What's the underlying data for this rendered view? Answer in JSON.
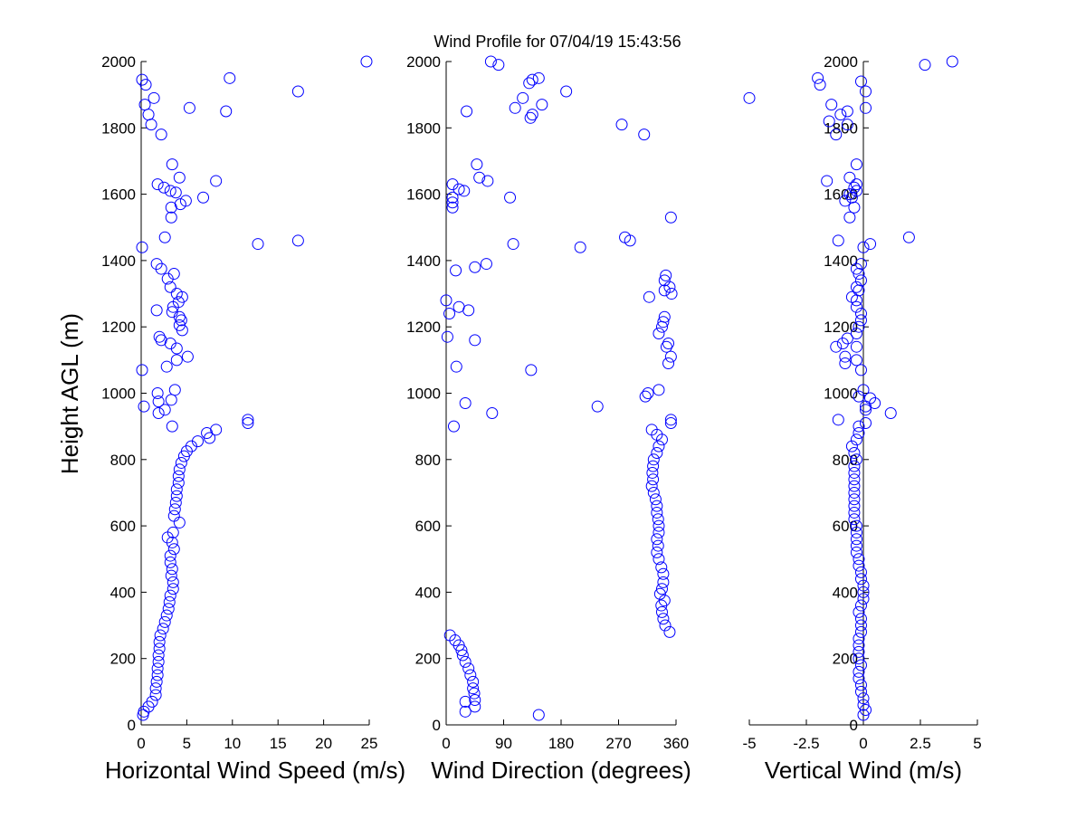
{
  "title": "Wind Profile for  07/04/19 15:43:56",
  "ylabel": "Height AGL (m)",
  "marker_color": "#0000ff",
  "chart_data": [
    {
      "type": "scatter",
      "xlabel": "Horizontal Wind Speed (m/s)",
      "xlim": [
        0,
        25
      ],
      "ylim": [
        0,
        2000
      ],
      "xticks": [
        0,
        5,
        10,
        15,
        20,
        25
      ],
      "xtick_labels": [
        "0",
        "5",
        "10",
        "15",
        "20",
        "25"
      ],
      "yticks": [
        0,
        200,
        400,
        600,
        800,
        1000,
        1200,
        1400,
        1600,
        1800,
        2000
      ],
      "ytick_labels": [
        "0",
        "200",
        "400",
        "600",
        "800",
        "1000",
        "1200",
        "1400",
        "1600",
        "1800",
        "2000"
      ],
      "marker": "open-circle",
      "points": [
        [
          0.2,
          30
        ],
        [
          0.3,
          40
        ],
        [
          0.8,
          55
        ],
        [
          1.2,
          70
        ],
        [
          1.6,
          90
        ],
        [
          1.6,
          110
        ],
        [
          1.7,
          130
        ],
        [
          1.8,
          150
        ],
        [
          1.8,
          170
        ],
        [
          1.9,
          190
        ],
        [
          1.9,
          210
        ],
        [
          2,
          230
        ],
        [
          2,
          250
        ],
        [
          2.1,
          270
        ],
        [
          2.4,
          290
        ],
        [
          2.6,
          310
        ],
        [
          2.8,
          330
        ],
        [
          3,
          350
        ],
        [
          3.1,
          370
        ],
        [
          3.2,
          390
        ],
        [
          3.5,
          410
        ],
        [
          3.5,
          430
        ],
        [
          3.3,
          450
        ],
        [
          3.4,
          470
        ],
        [
          3.2,
          490
        ],
        [
          3.2,
          510
        ],
        [
          3.6,
          530
        ],
        [
          3.4,
          550
        ],
        [
          2.9,
          565
        ],
        [
          3.5,
          580
        ],
        [
          4.2,
          610
        ],
        [
          3.6,
          630
        ],
        [
          3.7,
          650
        ],
        [
          3.8,
          670
        ],
        [
          3.9,
          690
        ],
        [
          3.9,
          710
        ],
        [
          4.1,
          730
        ],
        [
          4.1,
          750
        ],
        [
          4.2,
          770
        ],
        [
          4.4,
          790
        ],
        [
          4.7,
          810
        ],
        [
          5,
          825
        ],
        [
          5.5,
          840
        ],
        [
          6.2,
          855
        ],
        [
          7.5,
          865
        ],
        [
          7.2,
          880
        ],
        [
          8.2,
          890
        ],
        [
          11.7,
          910
        ],
        [
          11.7,
          920
        ],
        [
          3.4,
          900
        ],
        [
          1.9,
          940
        ],
        [
          2.6,
          950
        ],
        [
          0.3,
          960
        ],
        [
          1.9,
          975
        ],
        [
          3.3,
          980
        ],
        [
          1.8,
          1000
        ],
        [
          3.7,
          1010
        ],
        [
          0.1,
          1070
        ],
        [
          2.8,
          1080
        ],
        [
          3.9,
          1100
        ],
        [
          5.1,
          1110
        ],
        [
          3.9,
          1135
        ],
        [
          3.2,
          1150
        ],
        [
          2.2,
          1160
        ],
        [
          2,
          1170
        ],
        [
          4.5,
          1190
        ],
        [
          4.2,
          1205
        ],
        [
          4.4,
          1220
        ],
        [
          4.2,
          1230
        ],
        [
          3.4,
          1245
        ],
        [
          1.7,
          1250
        ],
        [
          3.5,
          1260
        ],
        [
          4.1,
          1275
        ],
        [
          4.5,
          1290
        ],
        [
          3.9,
          1300
        ],
        [
          3.2,
          1320
        ],
        [
          2.9,
          1345
        ],
        [
          3.6,
          1360
        ],
        [
          2.2,
          1375
        ],
        [
          1.7,
          1390
        ],
        [
          12.8,
          1450
        ],
        [
          17.2,
          1460
        ],
        [
          0.1,
          1440
        ],
        [
          2.6,
          1470
        ],
        [
          3.3,
          1530
        ],
        [
          3.3,
          1560
        ],
        [
          4.3,
          1570
        ],
        [
          4.9,
          1580
        ],
        [
          6.8,
          1590
        ],
        [
          3.8,
          1605
        ],
        [
          3.2,
          1610
        ],
        [
          2.5,
          1620
        ],
        [
          1.8,
          1630
        ],
        [
          8.2,
          1640
        ],
        [
          4.2,
          1650
        ],
        [
          3.4,
          1690
        ],
        [
          2.2,
          1780
        ],
        [
          1.1,
          1810
        ],
        [
          0.8,
          1840
        ],
        [
          5.3,
          1860
        ],
        [
          9.3,
          1850
        ],
        [
          0.4,
          1870
        ],
        [
          1.4,
          1890
        ],
        [
          17.2,
          1910
        ],
        [
          0.5,
          1930
        ],
        [
          0.1,
          1945
        ],
        [
          9.7,
          1950
        ],
        [
          24.7,
          2000
        ]
      ]
    },
    {
      "type": "scatter",
      "xlabel": "Wind Direction (degrees)",
      "xlim": [
        0,
        360
      ],
      "ylim": [
        0,
        2000
      ],
      "xticks": [
        0,
        90,
        180,
        270,
        360
      ],
      "xtick_labels": [
        "0",
        "90",
        "180",
        "270",
        "360"
      ],
      "yticks": [
        0,
        200,
        400,
        600,
        800,
        1000,
        1200,
        1400,
        1600,
        1800,
        2000
      ],
      "ytick_labels": [
        "0",
        "200",
        "400",
        "600",
        "800",
        "1000",
        "1200",
        "1400",
        "1600",
        "1800",
        "2000"
      ],
      "marker": "open-circle",
      "points": [
        [
          145,
          30
        ],
        [
          30,
          40
        ],
        [
          45,
          55
        ],
        [
          45,
          75
        ],
        [
          30,
          70
        ],
        [
          44,
          95
        ],
        [
          42,
          110
        ],
        [
          42,
          130
        ],
        [
          38,
          150
        ],
        [
          35,
          170
        ],
        [
          30,
          190
        ],
        [
          26,
          210
        ],
        [
          24,
          225
        ],
        [
          20,
          240
        ],
        [
          14,
          255
        ],
        [
          6,
          270
        ],
        [
          350,
          280
        ],
        [
          343,
          300
        ],
        [
          340,
          320
        ],
        [
          338,
          340
        ],
        [
          337,
          360
        ],
        [
          342,
          375
        ],
        [
          335,
          395
        ],
        [
          338,
          410
        ],
        [
          340,
          430
        ],
        [
          340,
          455
        ],
        [
          337,
          475
        ],
        [
          333,
          500
        ],
        [
          330,
          520
        ],
        [
          332,
          540
        ],
        [
          330,
          560
        ],
        [
          333,
          580
        ],
        [
          333,
          600
        ],
        [
          332,
          620
        ],
        [
          330,
          640
        ],
        [
          330,
          660
        ],
        [
          328,
          680
        ],
        [
          325,
          700
        ],
        [
          322,
          720
        ],
        [
          324,
          740
        ],
        [
          323,
          760
        ],
        [
          324,
          780
        ],
        [
          325,
          800
        ],
        [
          330,
          820
        ],
        [
          333,
          840
        ],
        [
          338,
          860
        ],
        [
          330,
          875
        ],
        [
          322,
          890
        ],
        [
          352,
          910
        ],
        [
          352,
          920
        ],
        [
          12,
          900
        ],
        [
          72,
          940
        ],
        [
          237,
          960
        ],
        [
          30,
          970
        ],
        [
          312,
          990
        ],
        [
          316,
          1000
        ],
        [
          333,
          1010
        ],
        [
          133,
          1070
        ],
        [
          16,
          1080
        ],
        [
          348,
          1090
        ],
        [
          352,
          1110
        ],
        [
          345,
          1140
        ],
        [
          348,
          1150
        ],
        [
          45,
          1160
        ],
        [
          2,
          1170
        ],
        [
          333,
          1180
        ],
        [
          338,
          1200
        ],
        [
          340,
          1215
        ],
        [
          342,
          1230
        ],
        [
          5,
          1240
        ],
        [
          35,
          1250
        ],
        [
          20,
          1260
        ],
        [
          0,
          1280
        ],
        [
          318,
          1290
        ],
        [
          353,
          1300
        ],
        [
          342,
          1310
        ],
        [
          350,
          1320
        ],
        [
          342,
          1340
        ],
        [
          344,
          1355
        ],
        [
          15,
          1370
        ],
        [
          45,
          1380
        ],
        [
          63,
          1390
        ],
        [
          105,
          1450
        ],
        [
          210,
          1440
        ],
        [
          280,
          1470
        ],
        [
          288,
          1460
        ],
        [
          352,
          1530
        ],
        [
          10,
          1560
        ],
        [
          10,
          1575
        ],
        [
          10,
          1590
        ],
        [
          100,
          1590
        ],
        [
          28,
          1610
        ],
        [
          20,
          1615
        ],
        [
          10,
          1630
        ],
        [
          65,
          1640
        ],
        [
          52,
          1650
        ],
        [
          48,
          1690
        ],
        [
          275,
          1810
        ],
        [
          310,
          1780
        ],
        [
          32,
          1850
        ],
        [
          108,
          1860
        ],
        [
          132,
          1830
        ],
        [
          135,
          1840
        ],
        [
          150,
          1870
        ],
        [
          120,
          1890
        ],
        [
          188,
          1910
        ],
        [
          130,
          1935
        ],
        [
          135,
          1945
        ],
        [
          145,
          1950
        ],
        [
          70,
          2000
        ],
        [
          82,
          1990
        ]
      ]
    },
    {
      "type": "scatter",
      "xlabel": "Vertical Wind (m/s)",
      "xlim": [
        -5,
        5
      ],
      "ylim": [
        0,
        2000
      ],
      "xticks": [
        -5,
        -2.5,
        0,
        2.5,
        5
      ],
      "xtick_labels": [
        "-5",
        "-2.5",
        "0",
        "2.5",
        "5"
      ],
      "yticks": [
        0,
        200,
        400,
        600,
        800,
        1000,
        1200,
        1400,
        1600,
        1800,
        2000
      ],
      "ytick_labels": [
        "0",
        "200",
        "400",
        "600",
        "800",
        "1000",
        "1200",
        "1400",
        "1600",
        "1800",
        "2000"
      ],
      "marker": "open-circle",
      "points": [
        [
          0,
          30
        ],
        [
          0.1,
          45
        ],
        [
          0,
          60
        ],
        [
          0,
          80
        ],
        [
          -0.1,
          100
        ],
        [
          -0.1,
          120
        ],
        [
          -0.2,
          140
        ],
        [
          -0.2,
          160
        ],
        [
          -0.1,
          180
        ],
        [
          -0.2,
          200
        ],
        [
          -0.2,
          220
        ],
        [
          -0.2,
          240
        ],
        [
          -0.2,
          260
        ],
        [
          -0.1,
          280
        ],
        [
          -0.1,
          300
        ],
        [
          -0.1,
          320
        ],
        [
          -0.2,
          340
        ],
        [
          -0.1,
          360
        ],
        [
          0,
          380
        ],
        [
          0,
          400
        ],
        [
          0,
          420
        ],
        [
          -0.1,
          440
        ],
        [
          -0.1,
          460
        ],
        [
          -0.2,
          480
        ],
        [
          -0.2,
          500
        ],
        [
          -0.3,
          520
        ],
        [
          -0.3,
          540
        ],
        [
          -0.3,
          560
        ],
        [
          -0.3,
          580
        ],
        [
          -0.3,
          600
        ],
        [
          -0.4,
          620
        ],
        [
          -0.4,
          640
        ],
        [
          -0.4,
          660
        ],
        [
          -0.4,
          680
        ],
        [
          -0.4,
          700
        ],
        [
          -0.4,
          720
        ],
        [
          -0.4,
          740
        ],
        [
          -0.4,
          760
        ],
        [
          -0.4,
          780
        ],
        [
          -0.3,
          800
        ],
        [
          -0.4,
          820
        ],
        [
          -0.5,
          840
        ],
        [
          -0.3,
          860
        ],
        [
          -0.2,
          880
        ],
        [
          -0.2,
          900
        ],
        [
          0.1,
          910
        ],
        [
          -1.1,
          920
        ],
        [
          1.2,
          940
        ],
        [
          0.1,
          950
        ],
        [
          0.1,
          960
        ],
        [
          0.5,
          970
        ],
        [
          0.3,
          985
        ],
        [
          -0.2,
          990
        ],
        [
          0,
          1010
        ],
        [
          -0.1,
          1070
        ],
        [
          -0.8,
          1090
        ],
        [
          -0.3,
          1100
        ],
        [
          -0.8,
          1110
        ],
        [
          -0.3,
          1140
        ],
        [
          -1.2,
          1140
        ],
        [
          -0.9,
          1150
        ],
        [
          -0.7,
          1165
        ],
        [
          -0.3,
          1180
        ],
        [
          -0.2,
          1200
        ],
        [
          -0.1,
          1220
        ],
        [
          -0.1,
          1240
        ],
        [
          -0.3,
          1260
        ],
        [
          -0.3,
          1280
        ],
        [
          -0.5,
          1290
        ],
        [
          -0.2,
          1310
        ],
        [
          -0.3,
          1320
        ],
        [
          -0.1,
          1340
        ],
        [
          -0.2,
          1360
        ],
        [
          -0.3,
          1375
        ],
        [
          -0.1,
          1390
        ],
        [
          0.3,
          1450
        ],
        [
          2,
          1470
        ],
        [
          -1.1,
          1460
        ],
        [
          0,
          1440
        ],
        [
          -0.6,
          1530
        ],
        [
          -0.4,
          1560
        ],
        [
          -0.8,
          1580
        ],
        [
          -0.6,
          1600
        ],
        [
          -0.5,
          1590
        ],
        [
          -0.3,
          1610
        ],
        [
          -0.4,
          1620
        ],
        [
          -0.3,
          1630
        ],
        [
          -0.6,
          1650
        ],
        [
          -1.6,
          1640
        ],
        [
          -0.3,
          1690
        ],
        [
          -1.2,
          1780
        ],
        [
          -1.5,
          1820
        ],
        [
          -0.7,
          1810
        ],
        [
          -1,
          1840
        ],
        [
          -0.7,
          1850
        ],
        [
          -1.4,
          1870
        ],
        [
          0.1,
          1860
        ],
        [
          -5,
          1890
        ],
        [
          0.1,
          1910
        ],
        [
          -1.9,
          1930
        ],
        [
          -2,
          1950
        ],
        [
          -0.1,
          1940
        ],
        [
          2.7,
          1990
        ],
        [
          3.9,
          2000
        ]
      ]
    }
  ]
}
